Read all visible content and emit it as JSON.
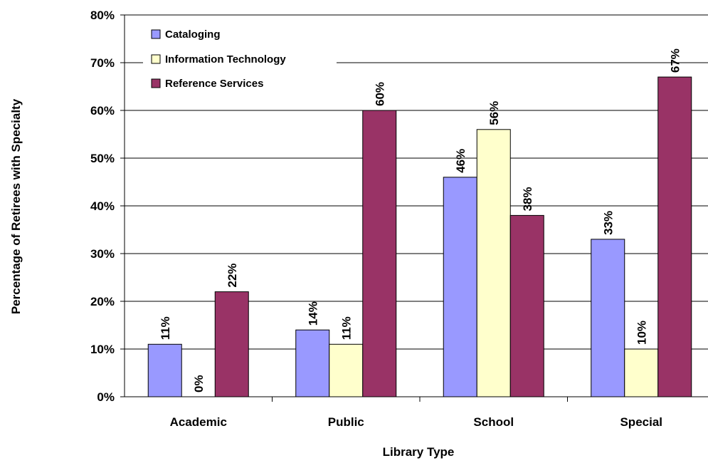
{
  "chart_data": {
    "type": "bar",
    "categories": [
      "Academic",
      "Public",
      "School",
      "Special"
    ],
    "series": [
      {
        "name": "Cataloging",
        "color": "#9999ff",
        "values": [
          11,
          14,
          46,
          33
        ],
        "labels": [
          "11%",
          "14%",
          "46%",
          "33%"
        ]
      },
      {
        "name": "Information Technology",
        "color": "#ffffcc",
        "values": [
          0,
          11,
          56,
          10
        ],
        "labels": [
          "0%",
          "11%",
          "56%",
          "10%"
        ]
      },
      {
        "name": "Reference Services",
        "color": "#993366",
        "values": [
          22,
          60,
          38,
          67
        ],
        "labels": [
          "22%",
          "60%",
          "38%",
          "67%"
        ]
      }
    ],
    "title": "",
    "xlabel": "Library Type",
    "ylabel": "Percentage of Retirees with Specialty",
    "ylim": [
      0,
      80
    ],
    "yticks": [
      "0%",
      "10%",
      "20%",
      "30%",
      "40%",
      "50%",
      "60%",
      "70%",
      "80%"
    ],
    "grid": true,
    "legend_position": "top-left"
  }
}
